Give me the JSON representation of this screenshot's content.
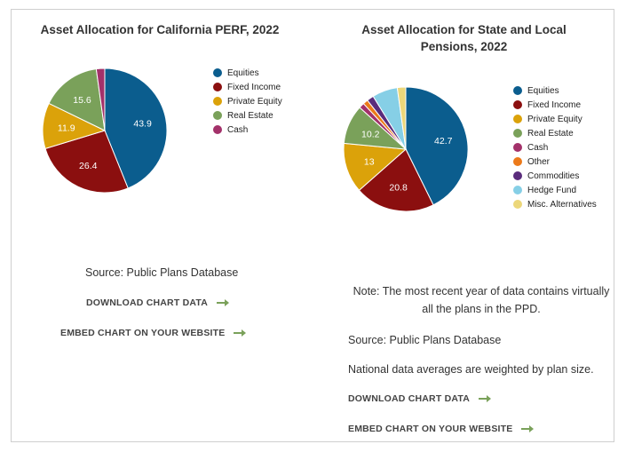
{
  "colors": {
    "equities": "#0b5d8e",
    "fixed_income": "#8b0f0f",
    "private_equity": "#dba20a",
    "real_estate": "#7aa15a",
    "cash": "#a3316a",
    "other": "#ec7a1a",
    "commodities": "#5a2c7c",
    "hedge_fund": "#86cfe6",
    "misc_alternatives": "#ecd77a"
  },
  "chart_data": [
    {
      "type": "pie",
      "title": "Asset Allocation for California PERF, 2022",
      "categories": [
        "Equities",
        "Fixed Income",
        "Private Equity",
        "Real Estate",
        "Cash"
      ],
      "values": [
        43.9,
        26.4,
        11.9,
        15.6,
        2.2
      ],
      "value_labels": [
        "43.9",
        "26.4",
        "11.9",
        "15.6",
        ""
      ],
      "legend_position": "right"
    },
    {
      "type": "pie",
      "title": "Asset Allocation for State and Local Pensions, 2022",
      "categories": [
        "Equities",
        "Fixed Income",
        "Private Equity",
        "Real Estate",
        "Cash",
        "Other",
        "Commodities",
        "Hedge Fund",
        "Misc. Alternatives"
      ],
      "values": [
        42.7,
        20.8,
        13,
        10.2,
        1.4,
        1.3,
        1.8,
        6.6,
        2.2
      ],
      "value_labels": [
        "42.7",
        "20.8",
        "13",
        "10.2",
        "",
        "",
        "",
        "",
        ""
      ],
      "legend_position": "right"
    }
  ],
  "left_panel": {
    "source": "Source: Public Plans Database",
    "download": "DOWNLOAD CHART DATA",
    "embed": "EMBED CHART ON YOUR WEBSITE"
  },
  "right_panel": {
    "note": "Note: The most recent year of data contains virtually all the plans in the PPD.",
    "source": "Source: Public Plans Database",
    "weighting": "National data averages are weighted by plan size.",
    "download": "DOWNLOAD CHART DATA",
    "embed": "EMBED CHART ON YOUR WEBSITE"
  }
}
